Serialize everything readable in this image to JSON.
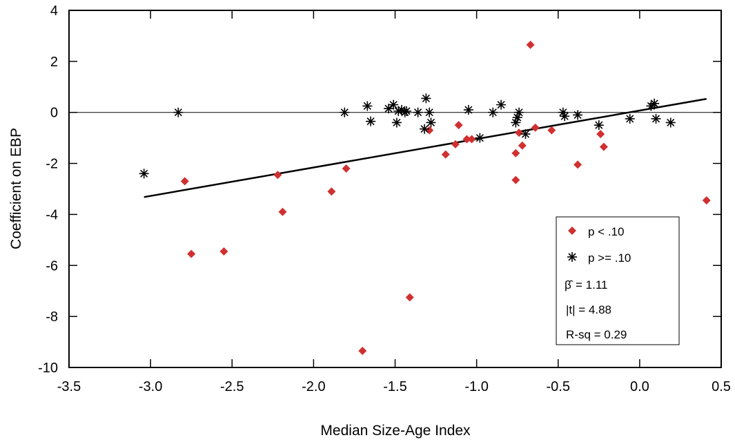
{
  "chart_data": {
    "type": "scatter",
    "xlabel": "Median Size-Age Index",
    "ylabel": "Coefficient on EBP",
    "xlim": [
      -3.5,
      0.5
    ],
    "ylim": [
      -10,
      4
    ],
    "xticks": [
      -3.5,
      -3.0,
      -2.5,
      -2.0,
      -1.5,
      -1.0,
      -0.5,
      0.0,
      0.5
    ],
    "xtick_labels": [
      "-3.5",
      "-3.0",
      "-2.5",
      "-2.0",
      "-1.5",
      "-1.0",
      "-0.5",
      "0.0",
      "0.5"
    ],
    "yticks": [
      -10,
      -8,
      -6,
      -4,
      -2,
      0,
      2,
      4
    ],
    "ytick_labels": [
      "-10",
      "-8",
      "-6",
      "-4",
      "-2",
      "0",
      "2",
      "4"
    ],
    "grid": false,
    "zero_line": true,
    "legend_position": "bottom-right",
    "series": [
      {
        "name": "p < .10",
        "marker": "diamond",
        "color": "#d03030",
        "x": [
          -2.79,
          -2.75,
          -2.55,
          -2.22,
          -2.19,
          -1.89,
          -1.8,
          -1.7,
          -1.41,
          -1.29,
          -1.19,
          -1.13,
          -1.11,
          -1.06,
          -1.03,
          -0.76,
          -0.76,
          -0.74,
          -0.72,
          -0.67,
          -0.64,
          -0.54,
          -0.38,
          -0.24,
          -0.22,
          0.41
        ],
        "y": [
          -2.7,
          -5.55,
          -5.45,
          -2.45,
          -3.9,
          -3.1,
          -2.2,
          -9.35,
          -7.25,
          -0.7,
          -1.65,
          -1.25,
          -0.5,
          -1.05,
          -1.05,
          -1.6,
          -2.65,
          -0.8,
          -1.3,
          2.65,
          -0.6,
          -0.7,
          -2.05,
          -0.85,
          -1.35,
          -3.45
        ]
      },
      {
        "name": "p >= .10",
        "marker": "asterisk",
        "color": "#000000",
        "x": [
          -3.04,
          -2.83,
          -1.81,
          -1.67,
          -1.65,
          -1.54,
          -1.51,
          -1.49,
          -1.48,
          -1.46,
          -1.44,
          -1.43,
          -1.36,
          -1.32,
          -1.31,
          -1.29,
          -1.28,
          -1.05,
          -0.98,
          -0.9,
          -0.85,
          -0.76,
          -0.75,
          -0.74,
          -0.7,
          -0.47,
          -0.46,
          -0.38,
          -0.25,
          -0.06,
          0.07,
          0.09,
          0.1,
          0.19
        ],
        "y": [
          -2.4,
          0.0,
          0.0,
          0.25,
          -0.35,
          0.15,
          0.3,
          -0.4,
          0.05,
          0.1,
          0.0,
          0.05,
          0.0,
          -0.65,
          0.55,
          0.0,
          -0.4,
          0.1,
          -1.0,
          0.0,
          0.3,
          -0.4,
          -0.2,
          0.0,
          -0.85,
          0.0,
          -0.15,
          -0.1,
          -0.5,
          -0.25,
          0.25,
          0.35,
          -0.25,
          -0.4
        ]
      }
    ],
    "fit_line": {
      "x": [
        -3.04,
        0.41
      ],
      "y": [
        -3.32,
        0.53
      ]
    },
    "annotations": {
      "beta": "= 1.11",
      "t": "|t| = 4.88",
      "rsq": "R-sq = 0.29"
    }
  }
}
